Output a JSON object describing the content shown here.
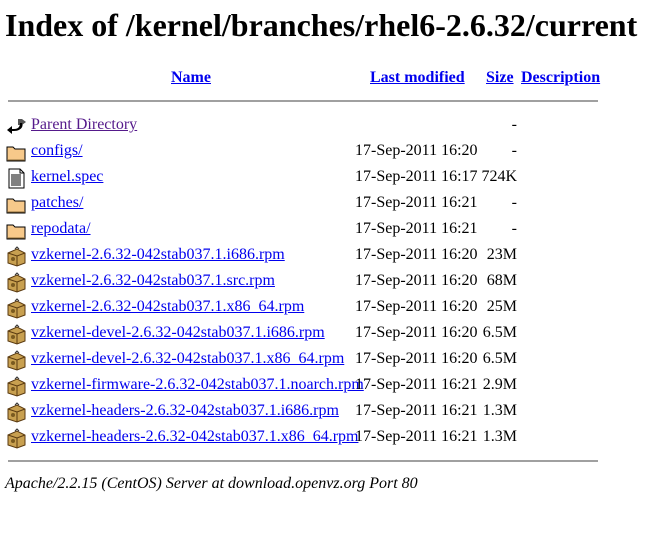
{
  "title": "Index of /kernel/branches/rhel6-2.6.32/current",
  "columns": {
    "name": "Name",
    "last_modified": "Last modified",
    "size": "Size",
    "description": "Description"
  },
  "rows": [
    {
      "icon": "back-icon",
      "name": "Parent Directory",
      "modified": "",
      "size": "-"
    },
    {
      "icon": "folder-icon",
      "name": "configs/",
      "modified": "17-Sep-2011 16:20",
      "size": "-"
    },
    {
      "icon": "text-file-icon",
      "name": "kernel.spec",
      "modified": "17-Sep-2011 16:17",
      "size": "724K"
    },
    {
      "icon": "folder-icon",
      "name": "patches/",
      "modified": "17-Sep-2011 16:21",
      "size": "-"
    },
    {
      "icon": "folder-icon",
      "name": "repodata/",
      "modified": "17-Sep-2011 16:21",
      "size": "-"
    },
    {
      "icon": "package-icon",
      "name": "vzkernel-2.6.32-042stab037.1.i686.rpm",
      "modified": "17-Sep-2011 16:20",
      "size": "23M"
    },
    {
      "icon": "package-icon",
      "name": "vzkernel-2.6.32-042stab037.1.src.rpm",
      "modified": "17-Sep-2011 16:20",
      "size": "68M"
    },
    {
      "icon": "package-icon",
      "name": "vzkernel-2.6.32-042stab037.1.x86_64.rpm",
      "modified": "17-Sep-2011 16:20",
      "size": "25M"
    },
    {
      "icon": "package-icon",
      "name": "vzkernel-devel-2.6.32-042stab037.1.i686.rpm",
      "modified": "17-Sep-2011 16:20",
      "size": "6.5M"
    },
    {
      "icon": "package-icon",
      "name": "vzkernel-devel-2.6.32-042stab037.1.x86_64.rpm",
      "modified": "17-Sep-2011 16:20",
      "size": "6.5M"
    },
    {
      "icon": "package-icon",
      "name": "vzkernel-firmware-2.6.32-042stab037.1.noarch.rpm",
      "modified": "17-Sep-2011 16:21",
      "size": "2.9M"
    },
    {
      "icon": "package-icon",
      "name": "vzkernel-headers-2.6.32-042stab037.1.i686.rpm",
      "modified": "17-Sep-2011 16:21",
      "size": "1.3M"
    },
    {
      "icon": "package-icon",
      "name": "vzkernel-headers-2.6.32-042stab037.1.x86_64.rpm",
      "modified": "17-Sep-2011 16:21",
      "size": "1.3M"
    }
  ],
  "footer": "Apache/2.2.15 (CentOS) Server at download.openvz.org Port 80",
  "colors": {
    "link": "#0000ee",
    "visited": "#551a8b",
    "rule": "#a0a0a0"
  }
}
